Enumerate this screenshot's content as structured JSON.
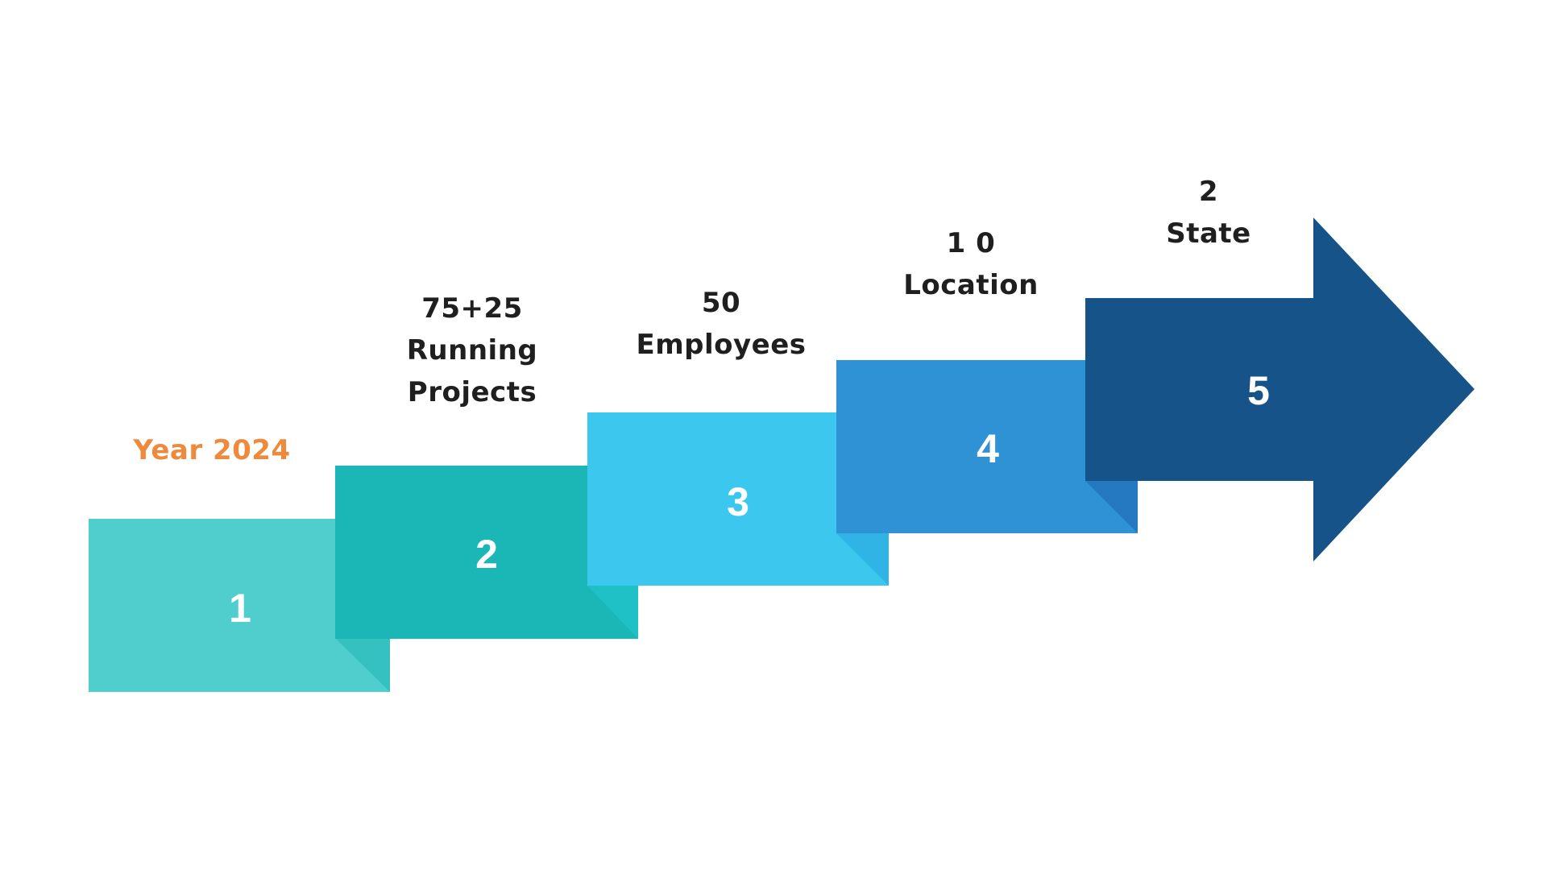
{
  "colors": {
    "step1": "#50cdcd",
    "step1_fold": "#34c1c0",
    "step2": "#1bb6b6",
    "step2_fold": "#1fc0c6",
    "step3": "#3bc7ee",
    "step3_fold": "#2fb4e5",
    "step4": "#2f92d5",
    "step4_fold": "#2579c1",
    "step5": "#165389",
    "caption_text": "#1f1f1f",
    "highlight_text": "#ef8a3c"
  },
  "steps": [
    {
      "number": "1",
      "caption_lines": [
        "Year 2024"
      ],
      "highlight": true
    },
    {
      "number": "2",
      "caption_lines": [
        "75+25",
        "Running",
        "Projects"
      ]
    },
    {
      "number": "3",
      "caption_lines": [
        "50",
        "Employees"
      ]
    },
    {
      "number": "4",
      "caption_lines": [
        "1 0",
        "Location"
      ]
    },
    {
      "number": "5",
      "caption_lines": [
        "2",
        "State"
      ]
    }
  ]
}
